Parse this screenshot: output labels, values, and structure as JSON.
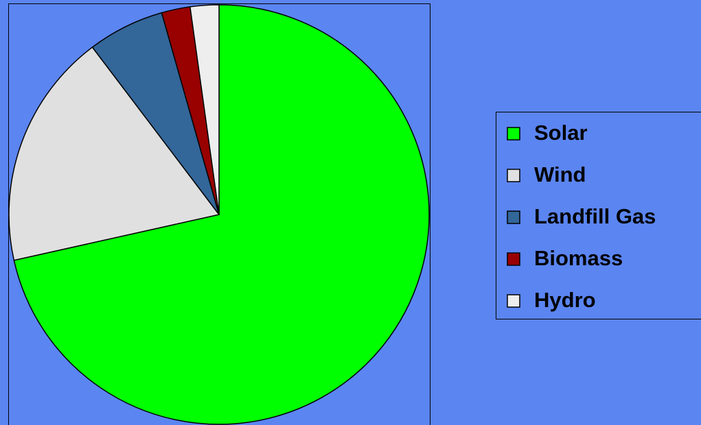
{
  "chart_data": {
    "type": "pie",
    "categories": [
      "Solar",
      "Wind",
      "Landfill Gas",
      "Biomass",
      "Hydro"
    ],
    "values": [
      71.5,
      18.2,
      5.9,
      2.2,
      2.2
    ],
    "colors": [
      "#00ff00",
      "#e0e0e0",
      "#336699",
      "#990000",
      "#eeeeee"
    ],
    "legend": "right"
  }
}
